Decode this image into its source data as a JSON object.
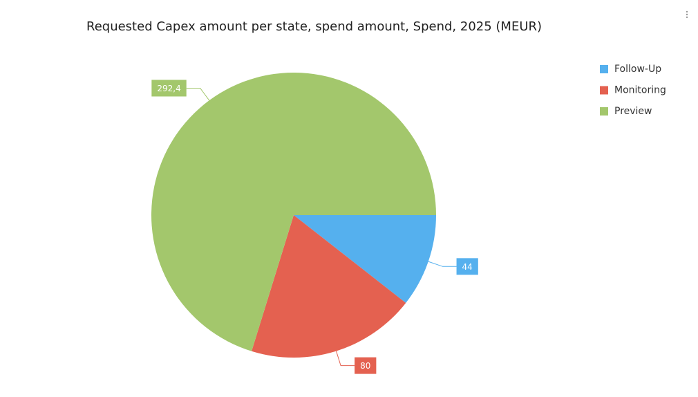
{
  "chart_data": {
    "type": "pie",
    "title": "Requested Capex amount per state, spend amount, Spend, 2025 (MEUR)",
    "categories": [
      "Follow-Up",
      "Monitoring",
      "Preview"
    ],
    "values": [
      44,
      80,
      292.4
    ],
    "value_labels": [
      "44",
      "80",
      "292,4"
    ],
    "colors": [
      "#55b0ee",
      "#e46150",
      "#a3c76c"
    ],
    "legend": "right"
  }
}
